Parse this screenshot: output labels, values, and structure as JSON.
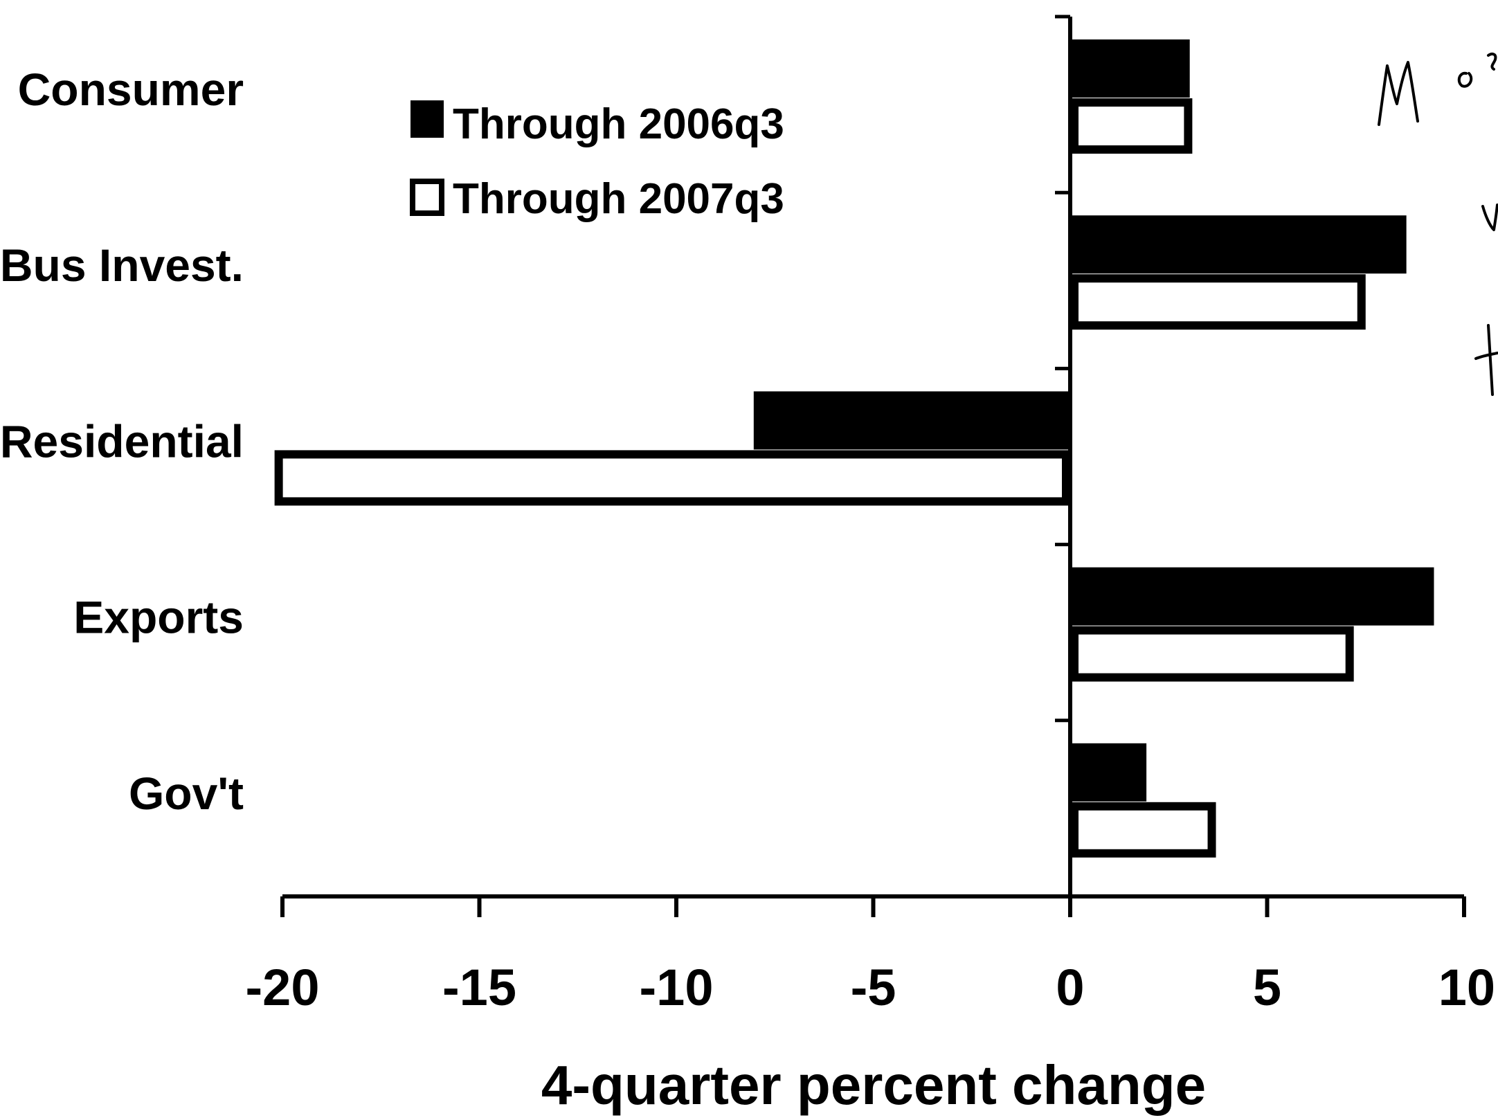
{
  "chart_data": {
    "type": "bar",
    "orientation": "horizontal",
    "categories": [
      "Consumer",
      "Bus Invest.",
      "Residential",
      "Exports",
      "Gov't"
    ],
    "series": [
      {
        "name": "Through 2006q3",
        "values": [
          3.0,
          8.5,
          -8.0,
          9.2,
          1.9
        ],
        "fill": "#000000"
      },
      {
        "name": "Through 2007q3",
        "values": [
          3.1,
          7.5,
          -20.2,
          7.2,
          3.7
        ],
        "fill": "#ffffff"
      }
    ],
    "xlabel": "4-quarter percent change",
    "xlim": [
      -20,
      10
    ],
    "xticks": [
      "-20",
      "-15",
      "-10",
      "-5",
      "0",
      "5",
      "10"
    ],
    "grid": false,
    "legend_position": "top-left"
  },
  "colors": {
    "bar_dark": "#000000",
    "bar_light": "#ffffff",
    "outline": "#000000"
  }
}
